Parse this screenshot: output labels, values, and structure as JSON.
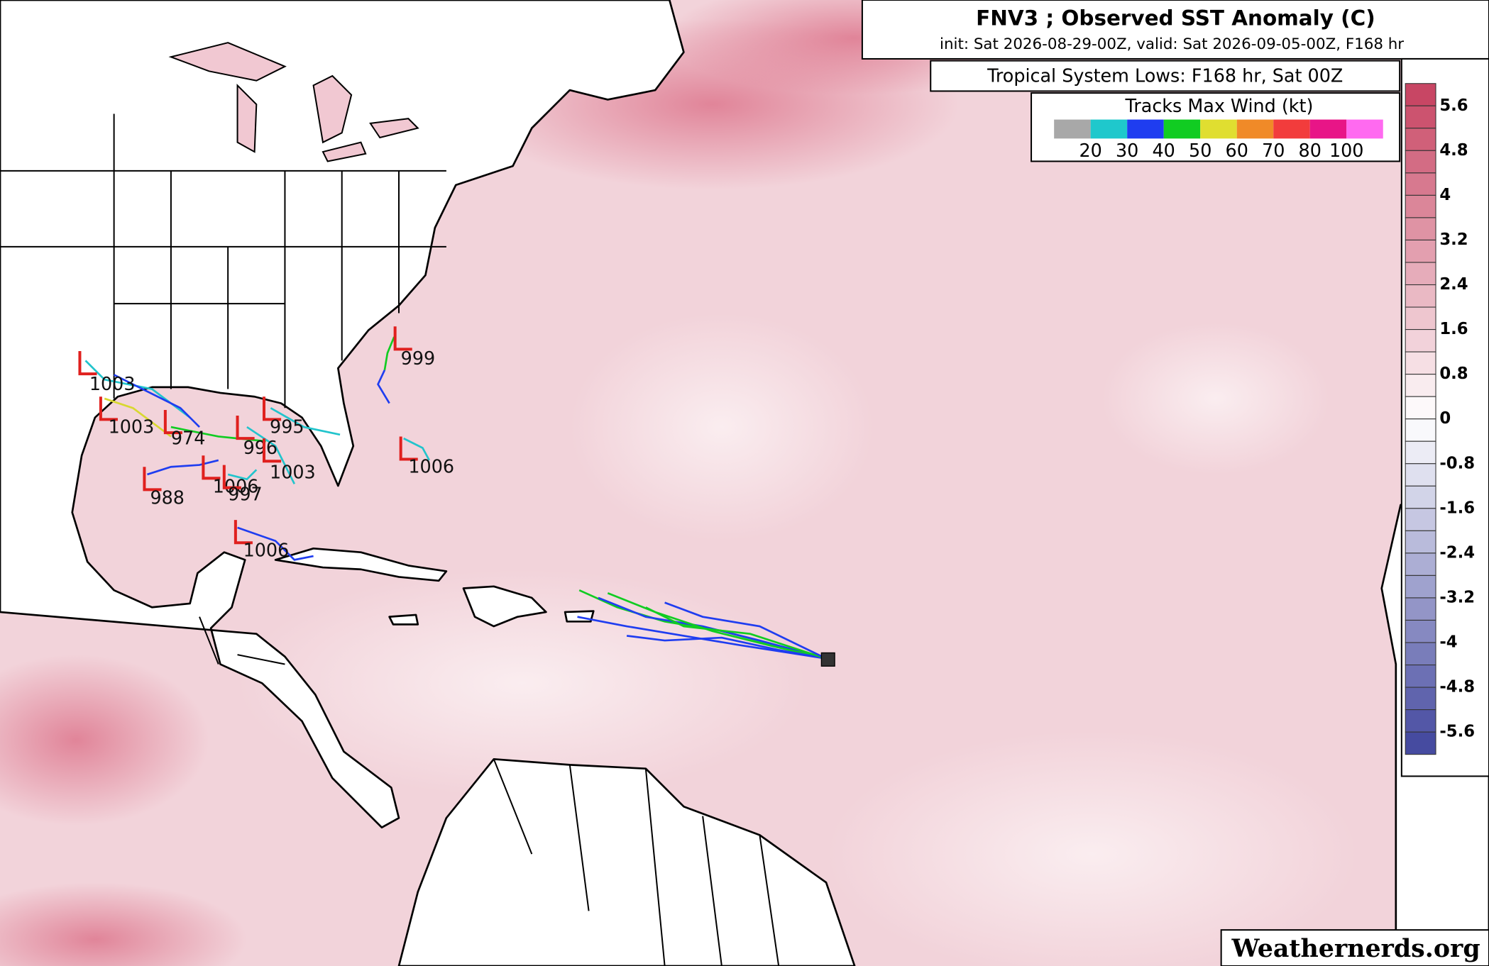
{
  "header": {
    "title": "FNV3 ; Observed SST Anomaly (C)",
    "subtitle": "init: Sat 2026-08-29-00Z, valid: Sat 2026-09-05-00Z, F168 hr"
  },
  "overlay_title": "Tropical System Lows: F168 hr, Sat 00Z",
  "wind_legend": {
    "title": "Tracks Max Wind (kt)",
    "labels": [
      "20",
      "30",
      "40",
      "50",
      "60",
      "70",
      "80",
      "100"
    ]
  },
  "colorbar": {
    "labels": [
      "5.6",
      "4.8",
      "4",
      "3.2",
      "2.4",
      "1.6",
      "0.8",
      "0",
      "-0.8",
      "-1.6",
      "-2.4",
      "-3.2",
      "-4",
      "-4.8",
      "-5.6"
    ]
  },
  "lows": [
    {
      "label": "1003"
    },
    {
      "label": "1003"
    },
    {
      "label": "974"
    },
    {
      "label": "995"
    },
    {
      "label": "996"
    },
    {
      "label": "1003"
    },
    {
      "label": "988"
    },
    {
      "label": "1006"
    },
    {
      "label": "997"
    },
    {
      "label": "1006"
    },
    {
      "label": "999"
    },
    {
      "label": "1006"
    }
  ],
  "watermark": "Weathernerds.org"
}
